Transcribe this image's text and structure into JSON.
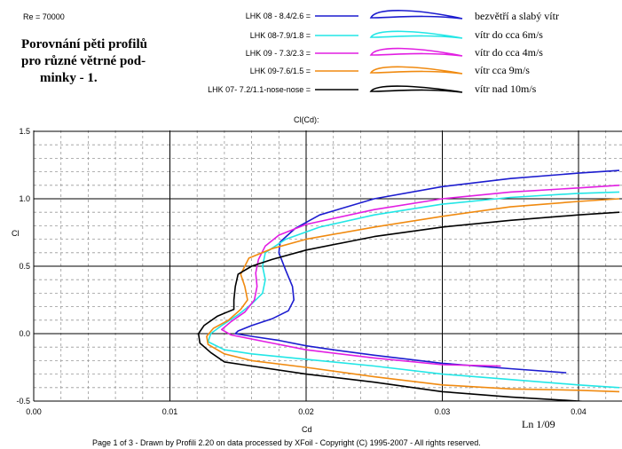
{
  "header": {
    "re_label": "Re = 70000",
    "heading_lines": [
      "Porovnání pěti profilů",
      "pro různé větrné pod-",
      "minky - 1."
    ]
  },
  "chart_data": {
    "type": "line",
    "title": "Cl(Cd):",
    "xlabel": "Cd",
    "ylabel": "Cl",
    "xlim": [
      0.0,
      0.043
    ],
    "ylim": [
      -0.5,
      1.5
    ],
    "x_ticks": [
      "0.00",
      "0.01",
      "0.02",
      "0.03",
      "0.04"
    ],
    "y_ticks": [
      "1.5",
      "1.0",
      "0.5",
      "0.0",
      "-0.5"
    ],
    "grid": true,
    "legend_position": "top",
    "corner_label": "Ln 1/09",
    "series": [
      {
        "name": "LHK 08 - 8.4/2.6 =",
        "description": "bezvětří a slabý vítr",
        "color": "#1c1ccf",
        "points": [
          [
            0.0391,
            -0.29
          ],
          [
            0.035,
            -0.26
          ],
          [
            0.03,
            -0.22
          ],
          [
            0.025,
            -0.16
          ],
          [
            0.022,
            -0.12
          ],
          [
            0.02,
            -0.09
          ],
          [
            0.018,
            -0.05
          ],
          [
            0.016,
            -0.02
          ],
          [
            0.0148,
            0.0
          ],
          [
            0.015,
            0.02
          ],
          [
            0.016,
            0.06
          ],
          [
            0.0175,
            0.11
          ],
          [
            0.0187,
            0.17
          ],
          [
            0.0191,
            0.25
          ],
          [
            0.019,
            0.35
          ],
          [
            0.0185,
            0.47
          ],
          [
            0.018,
            0.6
          ],
          [
            0.0181,
            0.68
          ],
          [
            0.0192,
            0.78
          ],
          [
            0.021,
            0.88
          ],
          [
            0.025,
            1.0
          ],
          [
            0.03,
            1.09
          ],
          [
            0.035,
            1.15
          ],
          [
            0.04,
            1.19
          ],
          [
            0.043,
            1.21
          ]
        ]
      },
      {
        "name": "LHK 08-7.9/1.8 =",
        "description": "vítr do cca 6m/s",
        "color": "#22e6e6",
        "points": [
          [
            0.043,
            -0.4
          ],
          [
            0.04,
            -0.38
          ],
          [
            0.035,
            -0.34
          ],
          [
            0.03,
            -0.3
          ],
          [
            0.025,
            -0.24
          ],
          [
            0.02,
            -0.19
          ],
          [
            0.016,
            -0.15
          ],
          [
            0.014,
            -0.12
          ],
          [
            0.0128,
            -0.06
          ],
          [
            0.013,
            0.0
          ],
          [
            0.0138,
            0.06
          ],
          [
            0.015,
            0.14
          ],
          [
            0.016,
            0.22
          ],
          [
            0.0168,
            0.3
          ],
          [
            0.017,
            0.4
          ],
          [
            0.0168,
            0.5
          ],
          [
            0.017,
            0.6
          ],
          [
            0.0185,
            0.7
          ],
          [
            0.021,
            0.79
          ],
          [
            0.025,
            0.88
          ],
          [
            0.03,
            0.96
          ],
          [
            0.035,
            1.01
          ],
          [
            0.04,
            1.04
          ],
          [
            0.043,
            1.05
          ]
        ]
      },
      {
        "name": "LHK 09 - 7.3/2.3 =",
        "description": "vítr do cca 4m/s",
        "color": "#e21ee2",
        "points": [
          [
            0.0343,
            -0.24
          ],
          [
            0.03,
            -0.23
          ],
          [
            0.025,
            -0.18
          ],
          [
            0.02,
            -0.12
          ],
          [
            0.017,
            -0.06
          ],
          [
            0.0145,
            -0.01
          ],
          [
            0.0138,
            0.03
          ],
          [
            0.0145,
            0.09
          ],
          [
            0.0155,
            0.16
          ],
          [
            0.0162,
            0.25
          ],
          [
            0.0164,
            0.35
          ],
          [
            0.0163,
            0.45
          ],
          [
            0.0165,
            0.55
          ],
          [
            0.017,
            0.65
          ],
          [
            0.018,
            0.73
          ],
          [
            0.02,
            0.81
          ],
          [
            0.025,
            0.92
          ],
          [
            0.03,
            1.0
          ],
          [
            0.035,
            1.05
          ],
          [
            0.04,
            1.08
          ],
          [
            0.043,
            1.1
          ]
        ]
      },
      {
        "name": "LHK 09-7.6/1.5 =",
        "description": "vítr cca 9m/s",
        "color": "#f08a10",
        "points": [
          [
            0.043,
            -0.43
          ],
          [
            0.04,
            -0.42
          ],
          [
            0.035,
            -0.41
          ],
          [
            0.03,
            -0.38
          ],
          [
            0.025,
            -0.32
          ],
          [
            0.02,
            -0.25
          ],
          [
            0.016,
            -0.2
          ],
          [
            0.014,
            -0.15
          ],
          [
            0.0128,
            -0.08
          ],
          [
            0.0127,
            -0.02
          ],
          [
            0.0132,
            0.04
          ],
          [
            0.0143,
            0.1
          ],
          [
            0.0152,
            0.18
          ],
          [
            0.0157,
            0.25
          ],
          [
            0.0155,
            0.35
          ],
          [
            0.0152,
            0.44
          ],
          [
            0.0158,
            0.56
          ],
          [
            0.0175,
            0.63
          ],
          [
            0.02,
            0.7
          ],
          [
            0.025,
            0.79
          ],
          [
            0.03,
            0.87
          ],
          [
            0.035,
            0.94
          ],
          [
            0.04,
            0.98
          ],
          [
            0.043,
            1.0
          ]
        ]
      },
      {
        "name": "LHK  07- 7.2/1.1-nose-nose =",
        "description": "vítr nad 10m/s",
        "color": "#000000",
        "points": [
          [
            0.043,
            -0.52
          ],
          [
            0.04,
            -0.5
          ],
          [
            0.035,
            -0.47
          ],
          [
            0.03,
            -0.43
          ],
          [
            0.025,
            -0.36
          ],
          [
            0.02,
            -0.3
          ],
          [
            0.016,
            -0.24
          ],
          [
            0.014,
            -0.21
          ],
          [
            0.013,
            -0.14
          ],
          [
            0.0122,
            -0.07
          ],
          [
            0.0121,
            0.0
          ],
          [
            0.0125,
            0.06
          ],
          [
            0.0135,
            0.13
          ],
          [
            0.0147,
            0.18
          ],
          [
            0.0147,
            0.25
          ],
          [
            0.0148,
            0.35
          ],
          [
            0.015,
            0.44
          ],
          [
            0.016,
            0.5
          ],
          [
            0.0175,
            0.55
          ],
          [
            0.02,
            0.62
          ],
          [
            0.025,
            0.72
          ],
          [
            0.03,
            0.79
          ],
          [
            0.035,
            0.84
          ],
          [
            0.04,
            0.88
          ],
          [
            0.043,
            0.9
          ]
        ]
      }
    ]
  },
  "footer": {
    "text": "Page 1 of 3   -   Drawn by Profili 2.20 on data processed by  XFoil - Copyright (C) 1995-2007 - All rights reserved."
  }
}
